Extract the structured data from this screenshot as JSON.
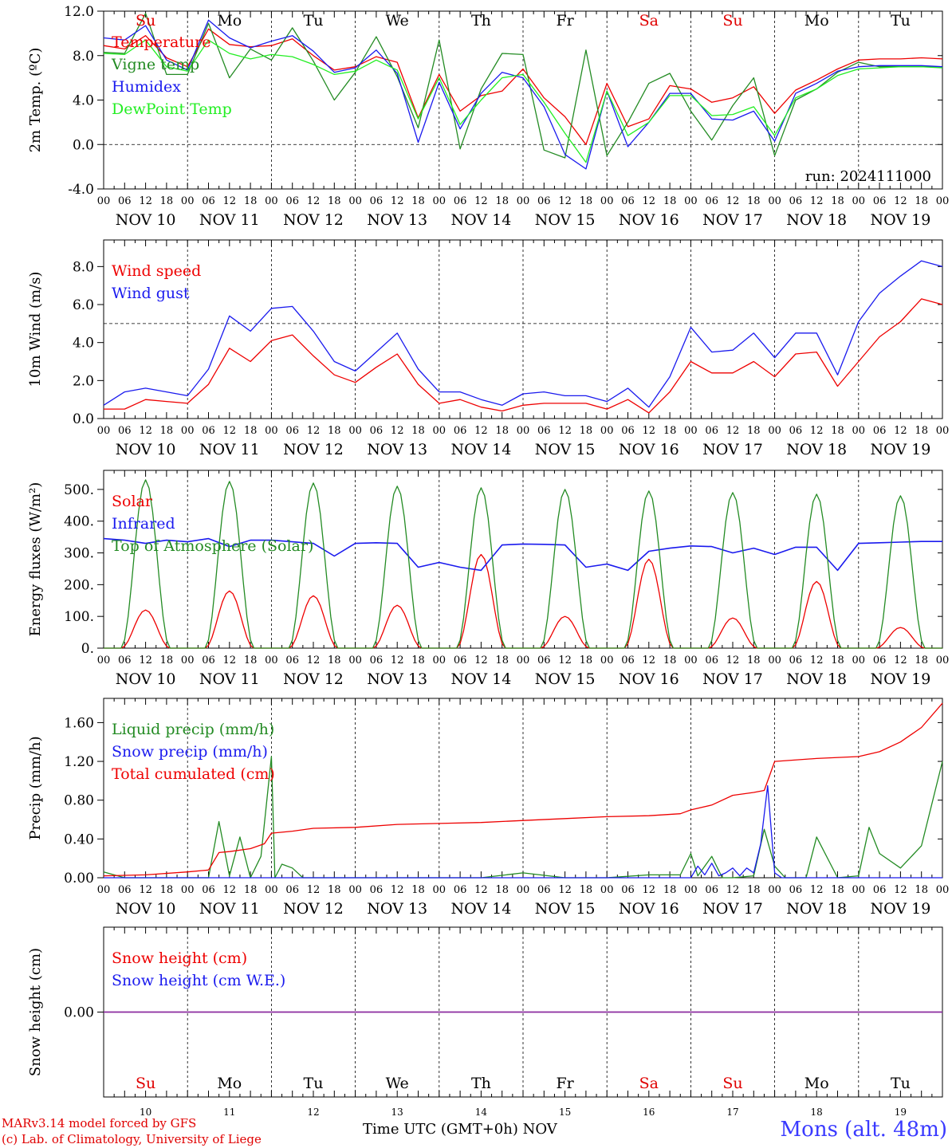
{
  "days": [
    "NOV 10",
    "NOV 11",
    "NOV 12",
    "NOV 13",
    "NOV 14",
    "NOV 15",
    "NOV 16",
    "NOV 17",
    "NOV 18",
    "NOV 19"
  ],
  "day_short": [
    {
      "label": "Su",
      "color": "#e00000"
    },
    {
      "label": "Mo",
      "color": "#000000"
    },
    {
      "label": "Tu",
      "color": "#000000"
    },
    {
      "label": "We",
      "color": "#000000"
    },
    {
      "label": "Th",
      "color": "#000000"
    },
    {
      "label": "Fr",
      "color": "#000000"
    },
    {
      "label": "Sa",
      "color": "#e00000"
    },
    {
      "label": "Su",
      "color": "#e00000"
    },
    {
      "label": "Mo",
      "color": "#000000"
    },
    {
      "label": "Tu",
      "color": "#000000"
    }
  ],
  "day_numbers": [
    "10",
    "11",
    "12",
    "13",
    "14",
    "15",
    "16",
    "17",
    "18",
    "19"
  ],
  "hour_ticks": [
    "00",
    "06",
    "12",
    "18"
  ],
  "hour_end_tick": "00",
  "x_title": "Time UTC (GMT+0h)",
  "x_month": "NOV",
  "credit_line1": "MARv3.14 model forced by GFS",
  "credit_line2": "(c) Lab. of Climatology, University of Liege",
  "station": "Mons (alt. 48m)",
  "chart_data": [
    {
      "type": "line",
      "ylabel": "2m Temp. (ºC)",
      "ylim": [
        -4,
        12
      ],
      "yticks": [
        "-4.0",
        "0.0",
        "4.0",
        "8.0",
        "12.0"
      ],
      "hline": 0,
      "annotation": "run: 2024111000",
      "x_hours": [
        0,
        6,
        12,
        18,
        24,
        30,
        36,
        42,
        48,
        54,
        60,
        66,
        72,
        78,
        84,
        90,
        96,
        102,
        108,
        114,
        120,
        126,
        132,
        138,
        144,
        150,
        156,
        162,
        168,
        174,
        180,
        186,
        192,
        198,
        204,
        210,
        216,
        222,
        228,
        234,
        240
      ],
      "series": [
        {
          "name": "Temperature",
          "color": "#ee0000",
          "values": [
            8.9,
            8.6,
            9.8,
            7.8,
            7.0,
            10.4,
            9.0,
            8.8,
            8.9,
            9.5,
            8.0,
            6.7,
            7.0,
            7.9,
            7.4,
            2.4,
            6.3,
            3.0,
            4.4,
            4.8,
            6.8,
            4.2,
            2.5,
            0.0,
            5.5,
            1.6,
            2.3,
            5.3,
            5.0,
            3.8,
            4.2,
            5.2,
            2.8,
            4.9,
            5.8,
            6.8,
            7.6,
            7.7,
            7.7,
            7.8,
            7.7
          ]
        },
        {
          "name": "Vigne temp",
          "color": "#238b23",
          "values": [
            8.3,
            8.2,
            11.8,
            6.3,
            6.3,
            10.9,
            6.0,
            8.6,
            7.6,
            10.5,
            7.5,
            4.0,
            6.5,
            9.7,
            6.1,
            1.5,
            9.4,
            -0.4,
            5.0,
            8.2,
            8.1,
            -0.5,
            -1.2,
            8.5,
            -1.0,
            2.0,
            5.5,
            6.4,
            3.0,
            0.4,
            3.5,
            6.0,
            -1.0,
            4.0,
            5.0,
            6.5,
            7.4,
            7.0,
            7.0,
            7.0,
            7.0
          ]
        },
        {
          "name": "Humidex",
          "color": "#1a1aee",
          "values": [
            9.6,
            9.4,
            10.7,
            7.6,
            6.7,
            11.2,
            9.6,
            8.7,
            9.3,
            9.8,
            8.4,
            6.5,
            6.9,
            8.5,
            6.4,
            0.2,
            5.6,
            1.4,
            4.6,
            6.5,
            6.0,
            3.4,
            -0.9,
            -2.2,
            4.8,
            -0.2,
            2.0,
            4.6,
            4.6,
            2.3,
            2.2,
            3.0,
            0.3,
            4.6,
            5.5,
            6.6,
            7.0,
            7.1,
            7.1,
            7.1,
            7.0
          ]
        },
        {
          "name": "DewPoint Temp",
          "color": "#22ee22",
          "values": [
            8.2,
            8.1,
            9.4,
            7.0,
            6.6,
            9.4,
            8.2,
            7.7,
            8.1,
            7.9,
            7.2,
            6.3,
            6.6,
            7.6,
            6.7,
            2.3,
            6.0,
            1.8,
            4.0,
            6.0,
            6.3,
            3.8,
            1.0,
            -1.6,
            4.8,
            0.8,
            2.0,
            4.4,
            4.4,
            2.6,
            2.7,
            3.4,
            0.8,
            4.2,
            5.0,
            6.2,
            6.8,
            6.9,
            7.0,
            7.0,
            6.9
          ]
        }
      ]
    },
    {
      "type": "line",
      "ylabel": "10m Wind (m/s)",
      "ylim": [
        0,
        9.4
      ],
      "yticks": [
        "0.0",
        "2.0",
        "4.0",
        "6.0",
        "8.0"
      ],
      "hline": 5,
      "x_hours": [
        0,
        6,
        12,
        18,
        24,
        30,
        36,
        42,
        48,
        54,
        60,
        66,
        72,
        78,
        84,
        90,
        96,
        102,
        108,
        114,
        120,
        126,
        132,
        138,
        144,
        150,
        156,
        162,
        168,
        174,
        180,
        186,
        192,
        198,
        204,
        210,
        216,
        222,
        228,
        234,
        240
      ],
      "series": [
        {
          "name": "Wind speed",
          "color": "#ee0000",
          "values": [
            0.5,
            0.5,
            1.0,
            0.9,
            0.8,
            1.8,
            3.7,
            3.0,
            4.1,
            4.4,
            3.3,
            2.3,
            1.9,
            2.7,
            3.4,
            1.8,
            0.8,
            1.0,
            0.6,
            0.4,
            0.7,
            0.8,
            0.8,
            0.8,
            0.5,
            1.0,
            0.3,
            1.4,
            3.0,
            2.4,
            2.4,
            3.0,
            2.2,
            3.4,
            3.5,
            1.7,
            3.0,
            4.3,
            5.1,
            6.3,
            6.0
          ]
        },
        {
          "name": "Wind gust",
          "color": "#1a1aee",
          "values": [
            0.7,
            1.4,
            1.6,
            1.4,
            1.2,
            2.6,
            5.4,
            4.6,
            5.8,
            5.9,
            4.6,
            3.0,
            2.5,
            3.5,
            4.5,
            2.6,
            1.4,
            1.4,
            1.0,
            0.7,
            1.3,
            1.4,
            1.2,
            1.2,
            0.9,
            1.6,
            0.6,
            2.2,
            4.8,
            3.5,
            3.6,
            4.5,
            3.2,
            4.5,
            4.5,
            2.3,
            5.1,
            6.6,
            7.5,
            8.3,
            8.0
          ]
        }
      ]
    },
    {
      "type": "line",
      "ylabel": "Energy fluxes (W/m²)",
      "ylim": [
        0,
        560
      ],
      "yticks": [
        "0.",
        "100.",
        "200.",
        "300.",
        "400.",
        "500."
      ],
      "series": [
        {
          "name": "Solar",
          "color": "#ee0000",
          "peaks": [
            120,
            180,
            165,
            135,
            295,
            100,
            280,
            95,
            210,
            65
          ]
        },
        {
          "name": "Infrared",
          "color": "#1a1aee",
          "x_hours": [
            0,
            6,
            12,
            18,
            24,
            30,
            36,
            42,
            48,
            54,
            60,
            66,
            72,
            78,
            84,
            90,
            96,
            102,
            108,
            114,
            120,
            126,
            132,
            138,
            144,
            150,
            156,
            162,
            168,
            174,
            180,
            186,
            192,
            198,
            204,
            210,
            216,
            222,
            228,
            234,
            240
          ],
          "values": [
            345,
            340,
            330,
            340,
            335,
            345,
            320,
            340,
            340,
            335,
            330,
            290,
            330,
            332,
            330,
            255,
            270,
            255,
            245,
            325,
            328,
            327,
            325,
            255,
            265,
            245,
            305,
            315,
            322,
            320,
            300,
            315,
            295,
            318,
            318,
            245,
            330,
            332,
            334,
            336,
            336
          ]
        },
        {
          "name": "Top of Atmosphere (Solar)",
          "color": "#238b23",
          "peaks": [
            530,
            525,
            520,
            510,
            505,
            500,
            495,
            490,
            485,
            480
          ]
        }
      ]
    },
    {
      "type": "line",
      "ylabel": "Precip (mm/h)",
      "ylim": [
        0,
        1.85
      ],
      "yticks": [
        "0.00",
        "0.40",
        "0.80",
        "1.20",
        "1.60"
      ],
      "series": [
        {
          "name": "Liquid precip (mm/h)",
          "color": "#238b23",
          "x_hours": [
            0,
            6,
            12,
            18,
            24,
            30,
            33,
            36,
            39,
            42,
            45,
            48,
            49,
            51,
            54,
            57,
            60,
            66,
            72,
            84,
            96,
            108,
            120,
            132,
            144,
            156,
            165,
            168,
            170,
            174,
            177,
            180,
            186,
            189,
            192,
            195,
            198,
            201,
            204,
            210,
            216,
            219,
            222,
            228,
            234,
            240
          ],
          "values": [
            0.06,
            0,
            0,
            0,
            0,
            0,
            0.58,
            0.02,
            0.42,
            0,
            0.22,
            1.25,
            0,
            0.14,
            0.1,
            0,
            0,
            0,
            0,
            0,
            0,
            0,
            0.05,
            0,
            0,
            0.03,
            0.03,
            0.25,
            0.02,
            0.22,
            0,
            0,
            0.02,
            0.5,
            0.12,
            0,
            0,
            0,
            0.42,
            0,
            0.02,
            0.52,
            0.25,
            0.1,
            0.33,
            1.2
          ]
        },
        {
          "name": "Snow precip (mm/h)",
          "color": "#1a1aee",
          "x_hours": [
            0,
            168,
            170,
            172,
            174,
            176,
            178,
            180,
            182,
            184,
            186,
            188,
            190,
            192,
            194,
            196,
            200,
            240
          ],
          "values": [
            0,
            0,
            0.12,
            0.03,
            0.15,
            0.02,
            0.05,
            0.1,
            0.02,
            0.1,
            0.05,
            0.35,
            0.95,
            0.05,
            0,
            0,
            0,
            0
          ]
        },
        {
          "name": "Total cumulated (cm)",
          "color": "#ee0000",
          "x_hours": [
            0,
            12,
            24,
            30,
            33,
            36,
            42,
            46,
            48,
            54,
            60,
            72,
            84,
            96,
            108,
            120,
            132,
            144,
            156,
            165,
            168,
            174,
            180,
            186,
            189,
            192,
            204,
            216,
            222,
            228,
            234,
            240
          ],
          "values": [
            0.02,
            0.03,
            0.06,
            0.08,
            0.26,
            0.27,
            0.3,
            0.35,
            0.46,
            0.48,
            0.51,
            0.52,
            0.55,
            0.56,
            0.57,
            0.59,
            0.61,
            0.63,
            0.64,
            0.66,
            0.7,
            0.75,
            0.85,
            0.88,
            0.9,
            1.2,
            1.23,
            1.25,
            1.3,
            1.4,
            1.55,
            1.8
          ]
        }
      ]
    },
    {
      "type": "line",
      "ylabel": "Snow height (cm)",
      "ylim": [
        -1,
        1
      ],
      "yticks": [
        "0.00"
      ],
      "series": [
        {
          "name": "Snow height (cm)",
          "color": "#ee0000",
          "values": [
            0,
            0
          ]
        },
        {
          "name": "Snow height (cm W.E.)",
          "color": "#1a1aee",
          "values": [
            0,
            0
          ]
        }
      ]
    }
  ]
}
